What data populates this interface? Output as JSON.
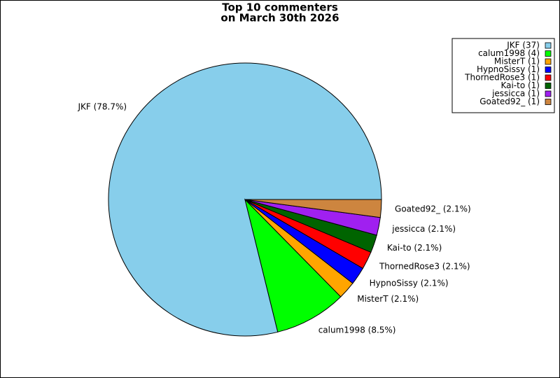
{
  "chart_data": {
    "type": "pie",
    "title_lines": [
      "Top 10 commenters",
      "on March 30th 2026"
    ],
    "categories": [
      "JKF",
      "calum1998",
      "MisterT",
      "HypnoSissy",
      "ThornedRose3",
      "Kai-to",
      "jessicca",
      "Goated92_"
    ],
    "values": [
      78.7,
      8.5,
      2.1,
      2.1,
      2.1,
      2.1,
      2.1,
      2.1
    ],
    "value_labels": [
      "JKF (78.7%)",
      "calum1998 (8.5%)",
      "MisterT (2.1%)",
      "HypnoSissy (2.1%)",
      "ThornedRose3 (2.1%)",
      "Kai-to (2.1%)",
      "jessicca (2.1%)",
      "Goated92_ (2.1%)"
    ],
    "legend_labels": [
      "JKF (37)",
      "calum1998 (4)",
      "MisterT (1)",
      "HypnoSissy (1)",
      "ThornedRose3 (1)",
      "Kai-to (1)",
      "jessicca (1)",
      "Goated92_ (1)"
    ],
    "colors": [
      "#87ceeb",
      "#00ff00",
      "#ffa500",
      "#0000ff",
      "#ff0000",
      "#006400",
      "#a020f0",
      "#cd853f"
    ],
    "legend": "upper right"
  }
}
